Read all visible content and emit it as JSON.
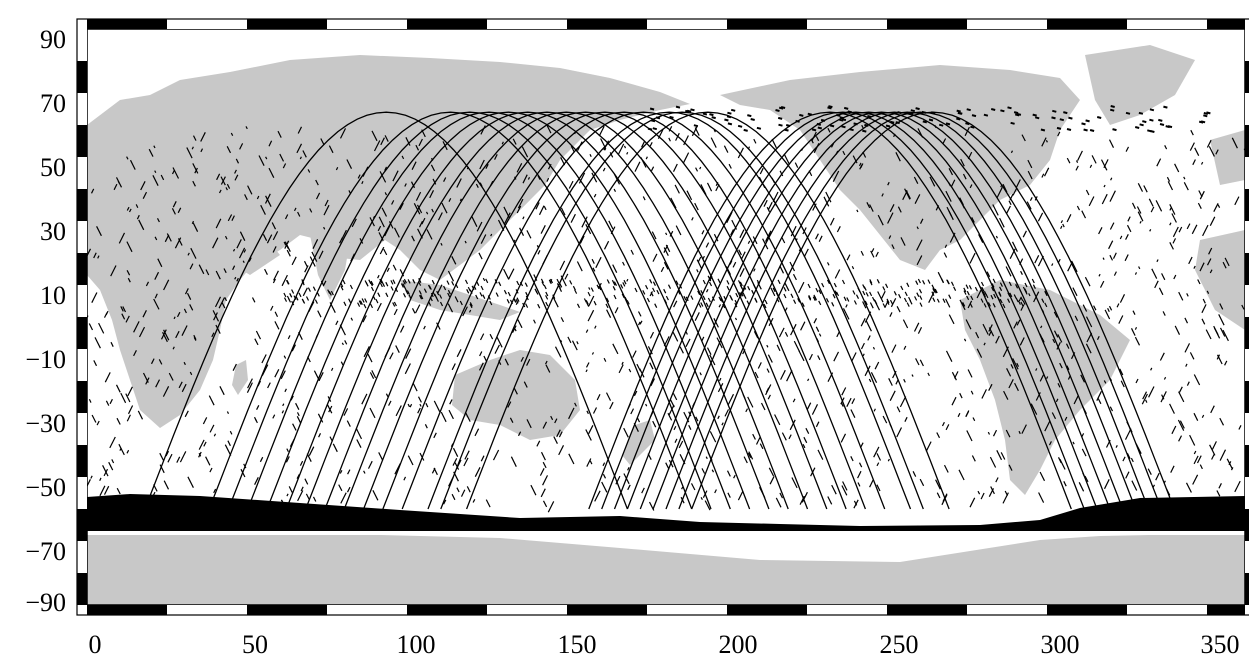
{
  "map": {
    "projection": "equirectangular (plate carrée)",
    "lon_range": [
      0,
      360
    ],
    "lat_range": [
      -90,
      90
    ],
    "land_color": "#c8c8c8",
    "ocean_color": "#ffffff",
    "track_color": "#000000",
    "frame": "black-white checkered border",
    "x_ticks": [
      "0",
      "50",
      "100",
      "150",
      "200",
      "250",
      "300",
      "350"
    ],
    "x_tick_values": [
      0,
      50,
      100,
      150,
      200,
      250,
      300,
      350
    ],
    "y_ticks": [
      "90",
      "70",
      "50",
      "30",
      "10",
      "−10",
      "−30",
      "−50",
      "−70",
      "−90"
    ],
    "y_tick_values": [
      90,
      70,
      50,
      30,
      10,
      -10,
      -30,
      -50,
      -70,
      -90
    ],
    "features": {
      "ice_edge_band_lat": [
        -67,
        -56
      ],
      "antarctic_coast_lat": -68
    },
    "ground_tracks": {
      "west_group_south_lon": [
        18,
        38,
        44,
        50,
        56,
        62,
        68,
        74,
        80,
        86,
        92,
        98,
        106,
        110,
        118
      ],
      "east_group_south_lon": [
        306,
        310,
        314,
        318,
        322,
        326,
        330,
        334,
        338
      ],
      "peak_lat": 64
    }
  }
}
